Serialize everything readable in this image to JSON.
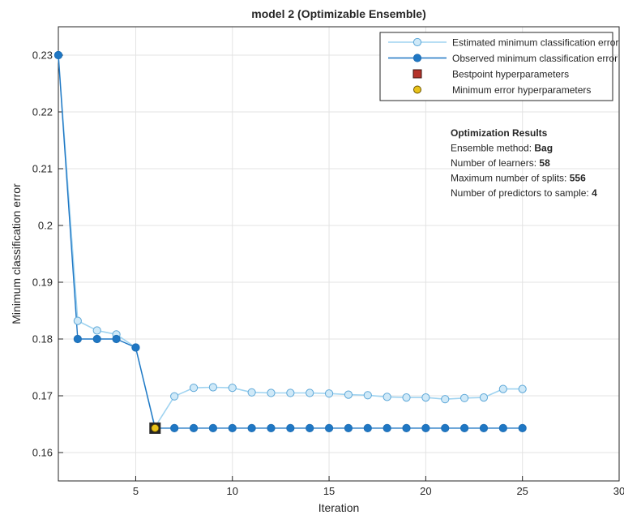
{
  "chart_data": {
    "type": "line",
    "title": "model 2 (Optimizable Ensemble)",
    "xlabel": "Iteration",
    "ylabel": "Minimum classification error",
    "xlim": [
      1,
      30
    ],
    "ylim": [
      0.155,
      0.235
    ],
    "xticks": [
      5,
      10,
      15,
      20,
      25,
      30
    ],
    "yticks": [
      0.16,
      0.17,
      0.18,
      0.19,
      0.2,
      0.21,
      0.22,
      0.23
    ],
    "grid": true,
    "legend_position": "top-right",
    "x": [
      1,
      2,
      3,
      4,
      5,
      6,
      7,
      8,
      9,
      10,
      11,
      12,
      13,
      14,
      15,
      16,
      17,
      18,
      19,
      20,
      21,
      22,
      23,
      24,
      25
    ],
    "series": [
      {
        "name": "Estimated minimum classification error",
        "color": "#9fd3f0",
        "edge": "#5ea8d8",
        "marker": "circle-open",
        "values": [
          0.23,
          0.1832,
          0.1815,
          0.1808,
          0.1785,
          0.1645,
          0.1699,
          0.1714,
          0.1715,
          0.1714,
          0.1706,
          0.1705,
          0.1705,
          0.1705,
          0.1704,
          0.1702,
          0.1701,
          0.1698,
          0.1697,
          0.1697,
          0.1694,
          0.1696,
          0.1697,
          0.1712,
          0.1712
        ]
      },
      {
        "name": "Observed minimum classification error",
        "color": "#1f77c4",
        "edge": "#1f6fb5",
        "marker": "circle-filled",
        "values": [
          0.23,
          0.18,
          0.18,
          0.18,
          0.1785,
          0.1643,
          0.1643,
          0.1643,
          0.1643,
          0.1643,
          0.1643,
          0.1643,
          0.1643,
          0.1643,
          0.1643,
          0.1643,
          0.1643,
          0.1643,
          0.1643,
          0.1643,
          0.1643,
          0.1643,
          0.1643,
          0.1643,
          0.1643
        ]
      }
    ],
    "markers": [
      {
        "name": "Bestpoint hyperparameters",
        "x": 6,
        "y": 0.1643,
        "shape": "square",
        "color": "#b5332a"
      },
      {
        "name": "Minimum error hyperparameters",
        "x": 6,
        "y": 0.1643,
        "shape": "circle",
        "color": "#e8c21a"
      }
    ],
    "annotation": {
      "title": "Optimization Results",
      "lines": [
        {
          "label": "Ensemble method: ",
          "value": "Bag"
        },
        {
          "label": "Number of learners: ",
          "value": "58"
        },
        {
          "label": "Maximum number of splits: ",
          "value": "556"
        },
        {
          "label": "Number of predictors to sample: ",
          "value": "4"
        }
      ]
    }
  }
}
